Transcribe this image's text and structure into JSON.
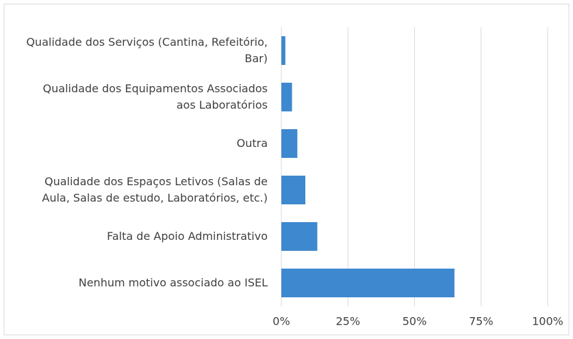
{
  "chart_data": {
    "type": "bar",
    "orientation": "horizontal",
    "categories": [
      "Qualidade dos Serviços (Cantina, Refeitório, Bar)",
      "Qualidade dos Equipamentos Associados aos Laboratórios",
      "Outra",
      "Qualidade dos Espaços Letivos (Salas de Aula, Salas de estudo, Laboratórios, etc.)",
      "Falta de Apoio Administrativo",
      "Nenhum motivo associado ao ISEL"
    ],
    "values": [
      1.5,
      4,
      6,
      9,
      13.5,
      65
    ],
    "color": "#3e88cf",
    "xlim": [
      0,
      100
    ],
    "xticks": [
      {
        "value": 0,
        "label": "0%"
      },
      {
        "value": 25,
        "label": "25%"
      },
      {
        "value": 50,
        "label": "50%"
      },
      {
        "value": 75,
        "label": "75%"
      },
      {
        "value": 100,
        "label": "100%"
      }
    ],
    "grid": true
  }
}
